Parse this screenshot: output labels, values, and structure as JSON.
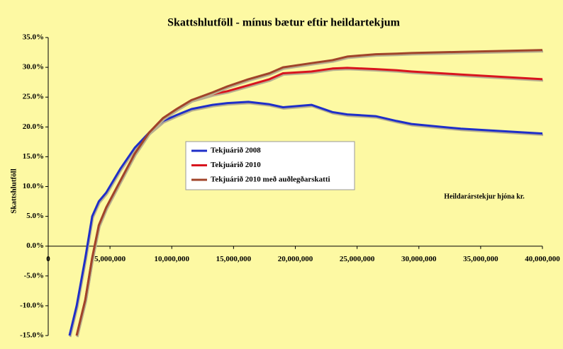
{
  "chart_data": {
    "type": "line",
    "title": "Skattshlutföll - mínus bætur eftir heildartekjum",
    "y_label": "Skattshlutföll",
    "annotation": "Heildarárstekjur hjóna kr.",
    "x": [
      1720000,
      2300000,
      3000000,
      3560000,
      4100000,
      4700000,
      5850000,
      7000000,
      8150000,
      9300000,
      10400000,
      11600000,
      13300000,
      14500000,
      16200000,
      17900000,
      19000000,
      21300000,
      23000000,
      24200000,
      26500000,
      28200000,
      29400000,
      33400000,
      40000000
    ],
    "series": [
      {
        "name": "Tekjuárið 2008",
        "color": "#1f2fc8",
        "values": [
          -15,
          -10,
          -2,
          5,
          7.5,
          9,
          13,
          16.5,
          19,
          21,
          22,
          23,
          23.7,
          24,
          24.2,
          23.8,
          23.3,
          23.7,
          22.5,
          22.1,
          21.8,
          21,
          20.5,
          19.7,
          18.9
        ]
      },
      {
        "name": "Tekjuárið 2010",
        "color": "#d8141e",
        "values": [
          null,
          -15,
          -9,
          -2,
          3.5,
          6.5,
          11,
          15.5,
          19,
          21.5,
          23,
          24.5,
          25.5,
          26,
          27,
          28,
          29,
          29.3,
          29.8,
          29.9,
          29.7,
          29.5,
          29.3,
          28.8,
          28
        ]
      },
      {
        "name": "Tekjuárið 2010 með auðlegðarskatti",
        "color": "#a0442a",
        "values": [
          null,
          -15,
          -9,
          -2,
          3.5,
          6.5,
          11,
          15.5,
          19,
          21.5,
          23,
          24.5,
          25.8,
          26.8,
          28,
          29,
          30,
          30.7,
          31.2,
          31.8,
          32.2,
          32.3,
          32.4,
          32.6,
          32.9
        ]
      }
    ],
    "xlim": [
      0,
      40000000
    ],
    "xticks": [
      0,
      {
        "value": 5000000,
        "label": "5,000,000"
      },
      {
        "value": 10000000,
        "label": "10,000,000"
      },
      {
        "value": 15000000,
        "label": "15,000,000"
      },
      {
        "value": 20000000,
        "label": "20,000,000"
      },
      {
        "value": 25000000,
        "label": "25,000,000"
      },
      {
        "value": 30000000,
        "label": "30,000,000"
      },
      {
        "value": 35000000,
        "label": "35,000,000"
      },
      {
        "value": 40000000,
        "label": "40,000,000"
      }
    ],
    "ylim": [
      -15,
      35
    ],
    "yticks": [
      {
        "value": -15,
        "label": "-15.0%"
      },
      {
        "value": -10,
        "label": "-10.0%"
      },
      {
        "value": -5,
        "label": "-5.0%"
      },
      {
        "value": 0,
        "label": "0.0%"
      },
      {
        "value": 5,
        "label": "5.0%"
      },
      {
        "value": 10,
        "label": "10.0%"
      },
      {
        "value": 15,
        "label": "15.0%"
      },
      {
        "value": 20,
        "label": "20.0%"
      },
      {
        "value": 25,
        "label": "25.0%"
      },
      {
        "value": 30,
        "label": "30.0%"
      },
      {
        "value": 35,
        "label": "35.0%"
      }
    ],
    "grid": false
  }
}
